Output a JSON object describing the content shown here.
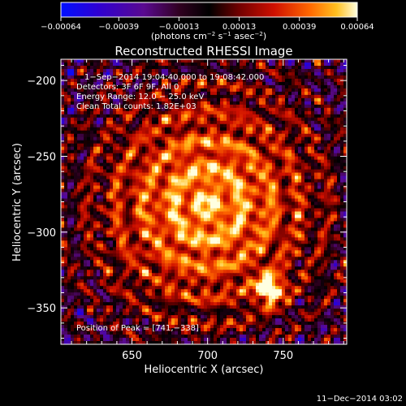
{
  "chart_data": {
    "type": "heatmap",
    "title": "Reconstructed RHESSI Image",
    "xlabel": "Heliocentric X (arcsec)",
    "ylabel": "Heliocentric Y (arcsec)",
    "xlim": [
      603,
      792
    ],
    "ylim": [
      -374,
      -186
    ],
    "x_ticks": [
      650,
      700,
      750
    ],
    "y_ticks": [
      -200,
      -250,
      -300,
      -350
    ],
    "x_tick_labels": [
      "650",
      "700",
      "750"
    ],
    "y_tick_labels": [
      "−200",
      "−250",
      "−300",
      "−350"
    ],
    "colorbar": {
      "range": [
        -0.00064,
        0.00064
      ],
      "ticks": [
        -0.00064,
        -0.00039,
        -0.00013,
        0.00013,
        0.00039,
        0.00064
      ],
      "tick_labels": [
        "−0.00064",
        "−0.00039",
        "−0.00013",
        "0.00013",
        "0.00039",
        "0.00064"
      ],
      "units_prefix": "(photons cm",
      "units_sup1": "−2",
      "units_mid1": " s",
      "units_sup2": "−1",
      "units_mid2": " asec",
      "units_sup3": "−2",
      "units_suffix": ")"
    },
    "annotations": {
      "time": "1−Sep−2014 19:04:40.000 to 19:08:42.000",
      "detectors": "Detectors: 3F 6F 9F, All 0",
      "energy": "Energy Range: 12.0 − 25.0 keV",
      "clean": "Clean     Total counts: 1.82E+03",
      "peak": "Position of Peak = [741,−338]"
    },
    "peak": [
      741,
      -338
    ],
    "footer_date": "11−Dec−2014 03:02"
  }
}
